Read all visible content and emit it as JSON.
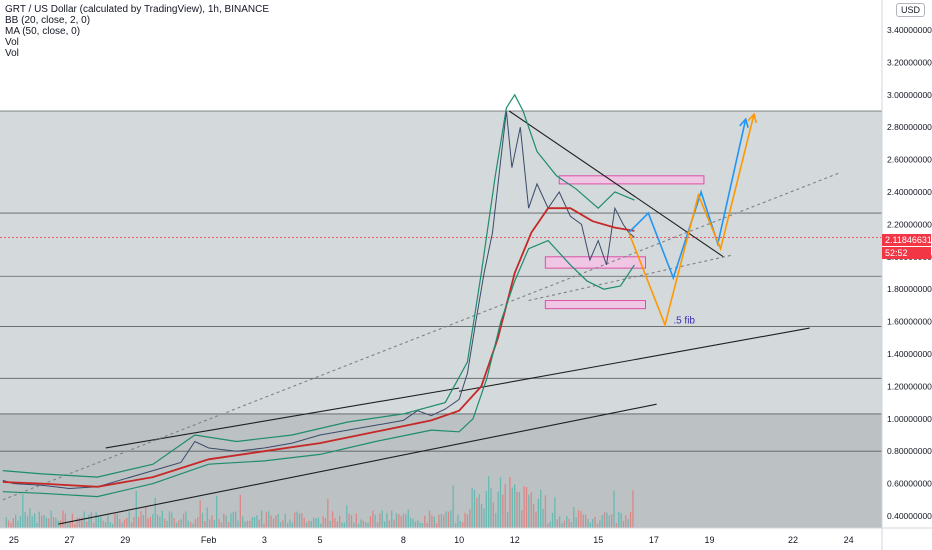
{
  "legend": {
    "title": "GRT / US Dollar (calculated by TradingView), 1h, BINANCE",
    "bb": "BB (20, close, 2, 0)",
    "ma": "MA (50, close, 0)",
    "vol1": "Vol",
    "vol2": "Vol"
  },
  "currency": "USD",
  "price_tag": {
    "price": "2.11846631",
    "countdown": "52:52"
  },
  "colors": {
    "bb": "#1e8c6e",
    "ma": "#c62828",
    "blue_path": "#2196f3",
    "orange_path": "#ff9800",
    "zone": "#e040a0",
    "price": "#f23645"
  },
  "chart_data": {
    "type": "line",
    "title": "GRT / US Dollar (calculated by TradingView), 1h, BINANCE",
    "xlabel": "",
    "ylabel": "",
    "ylim": [
      0.34,
      3.52
    ],
    "xlim": [
      24.5,
      55
    ],
    "x_ticks": [
      {
        "x": 25,
        "label": "25"
      },
      {
        "x": 27,
        "label": "27"
      },
      {
        "x": 29,
        "label": "29"
      },
      {
        "x": 32,
        "label": "Feb"
      },
      {
        "x": 34,
        "label": "3"
      },
      {
        "x": 36,
        "label": "5"
      },
      {
        "x": 39,
        "label": "8"
      },
      {
        "x": 41,
        "label": "10"
      },
      {
        "x": 43,
        "label": "12"
      },
      {
        "x": 46,
        "label": "15"
      },
      {
        "x": 48,
        "label": "17"
      },
      {
        "x": 50,
        "label": "19"
      },
      {
        "x": 53,
        "label": "22"
      },
      {
        "x": 55,
        "label": "24"
      }
    ],
    "y_ticks": [
      "3.40000000",
      "3.20000000",
      "3.00000000",
      "2.80000000",
      "2.60000000",
      "2.40000000",
      "2.20000000",
      "2.00000000",
      "1.80000000",
      "1.60000000",
      "1.40000000",
      "1.20000000",
      "1.00000000",
      "0.80000000",
      "0.60000000",
      "0.40000000"
    ],
    "last_price": 2.11846631,
    "series": [
      {
        "role": "price",
        "points": [
          [
            24.6,
            0.62
          ],
          [
            25,
            0.6
          ],
          [
            26,
            0.59
          ],
          [
            27,
            0.57
          ],
          [
            28,
            0.58
          ],
          [
            29,
            0.63
          ],
          [
            30,
            0.68
          ],
          [
            31,
            0.73
          ],
          [
            31.5,
            0.86
          ],
          [
            32,
            0.82
          ],
          [
            33,
            0.8
          ],
          [
            34,
            0.82
          ],
          [
            35,
            0.85
          ],
          [
            36,
            0.9
          ],
          [
            37,
            0.93
          ],
          [
            38,
            0.96
          ],
          [
            39,
            0.99
          ],
          [
            39.5,
            1.05
          ],
          [
            40,
            1.02
          ],
          [
            40.5,
            1.06
          ],
          [
            41,
            1.12
          ],
          [
            41.3,
            1.28
          ],
          [
            41.6,
            1.6
          ],
          [
            41.9,
            1.9
          ],
          [
            42.2,
            2.15
          ],
          [
            42.5,
            2.6
          ],
          [
            42.7,
            2.9
          ],
          [
            42.9,
            2.55
          ],
          [
            43.2,
            2.8
          ],
          [
            43.5,
            2.3
          ],
          [
            43.8,
            2.45
          ],
          [
            44.2,
            2.3
          ],
          [
            44.6,
            2.4
          ],
          [
            45,
            2.25
          ],
          [
            45.4,
            2.2
          ],
          [
            45.7,
            1.98
          ],
          [
            46,
            2.1
          ],
          [
            46.3,
            1.95
          ],
          [
            46.6,
            2.3
          ],
          [
            46.9,
            2.2
          ],
          [
            47.1,
            2.15
          ],
          [
            47.3,
            2.12
          ]
        ]
      },
      {
        "role": "ma",
        "points": [
          [
            24.6,
            0.61
          ],
          [
            26,
            0.6
          ],
          [
            28,
            0.58
          ],
          [
            30,
            0.64
          ],
          [
            32,
            0.75
          ],
          [
            34,
            0.8
          ],
          [
            36,
            0.85
          ],
          [
            38,
            0.92
          ],
          [
            40,
            0.99
          ],
          [
            41,
            1.05
          ],
          [
            41.8,
            1.2
          ],
          [
            42.4,
            1.5
          ],
          [
            43,
            1.9
          ],
          [
            43.6,
            2.15
          ],
          [
            44.2,
            2.3
          ],
          [
            45,
            2.3
          ],
          [
            45.8,
            2.22
          ],
          [
            46.6,
            2.18
          ],
          [
            47.3,
            2.16
          ]
        ]
      },
      {
        "role": "bb_upper",
        "points": [
          [
            24.6,
            0.68
          ],
          [
            26,
            0.66
          ],
          [
            28,
            0.64
          ],
          [
            30,
            0.72
          ],
          [
            31.5,
            0.9
          ],
          [
            33,
            0.86
          ],
          [
            35,
            0.9
          ],
          [
            37,
            0.98
          ],
          [
            39,
            1.03
          ],
          [
            40.5,
            1.1
          ],
          [
            41.3,
            1.35
          ],
          [
            41.8,
            1.9
          ],
          [
            42.3,
            2.5
          ],
          [
            42.7,
            2.92
          ],
          [
            43,
            3.0
          ],
          [
            43.3,
            2.9
          ],
          [
            43.8,
            2.65
          ],
          [
            44.5,
            2.5
          ],
          [
            45.2,
            2.42
          ],
          [
            46,
            2.3
          ],
          [
            46.6,
            2.4
          ],
          [
            47.3,
            2.35
          ]
        ]
      },
      {
        "role": "bb_lower",
        "points": [
          [
            24.6,
            0.55
          ],
          [
            26,
            0.54
          ],
          [
            28,
            0.52
          ],
          [
            30,
            0.6
          ],
          [
            32,
            0.72
          ],
          [
            34,
            0.74
          ],
          [
            36,
            0.78
          ],
          [
            38,
            0.86
          ],
          [
            40,
            0.93
          ],
          [
            41,
            0.92
          ],
          [
            41.5,
            1.0
          ],
          [
            42,
            1.25
          ],
          [
            42.5,
            1.6
          ],
          [
            43,
            1.85
          ],
          [
            43.5,
            2.05
          ],
          [
            44.2,
            2.1
          ],
          [
            45,
            1.95
          ],
          [
            45.6,
            1.85
          ],
          [
            46.2,
            1.8
          ],
          [
            46.8,
            1.82
          ],
          [
            47.3,
            1.95
          ]
        ]
      }
    ],
    "horizontal_levels": [
      2.9,
      2.27,
      1.88,
      1.57,
      1.25,
      1.03,
      0.8
    ],
    "trend_lines": [
      {
        "role": "channel_upper",
        "points": [
          [
            28.3,
            0.82
          ],
          [
            41,
            1.19
          ]
        ]
      },
      {
        "role": "channel_lower",
        "points": [
          [
            26.6,
            0.35
          ],
          [
            48.1,
            1.09
          ]
        ]
      },
      {
        "role": "long_support",
        "points": [
          [
            41,
            1.17
          ],
          [
            53.6,
            1.56
          ]
        ]
      },
      {
        "role": "triangle_top",
        "points": [
          [
            42.8,
            2.9
          ],
          [
            50.5,
            2.0
          ]
        ]
      },
      {
        "role": "dotted_trend",
        "points": [
          [
            24.6,
            0.5
          ],
          [
            54.7,
            2.52
          ]
        ]
      },
      {
        "role": "triangle_bottom_dotted",
        "points": [
          [
            43.5,
            1.73
          ],
          [
            50.8,
            2.01
          ]
        ]
      }
    ],
    "zones": [
      {
        "x0": 44.6,
        "x1": 49.8,
        "y0": 2.45,
        "y1": 2.5
      },
      {
        "x0": 44.1,
        "x1": 47.7,
        "y0": 1.93,
        "y1": 2.0
      },
      {
        "x0": 44.1,
        "x1": 47.7,
        "y0": 1.68,
        "y1": 1.73
      }
    ],
    "projections": [
      {
        "role": "blue_path",
        "points": [
          [
            47.1,
            2.15
          ],
          [
            47.8,
            2.27
          ],
          [
            48.7,
            1.87
          ],
          [
            49.7,
            2.4
          ],
          [
            50.3,
            2.08
          ],
          [
            51.3,
            2.85
          ]
        ]
      },
      {
        "role": "orange_path",
        "points": [
          [
            47.1,
            2.15
          ],
          [
            48.4,
            1.58
          ],
          [
            49.6,
            2.38
          ],
          [
            50.4,
            2.05
          ],
          [
            51.6,
            2.88
          ]
        ]
      }
    ],
    "annotations": [
      {
        "text": ".5 fib",
        "x": 48.7,
        "y": 1.57
      }
    ]
  }
}
